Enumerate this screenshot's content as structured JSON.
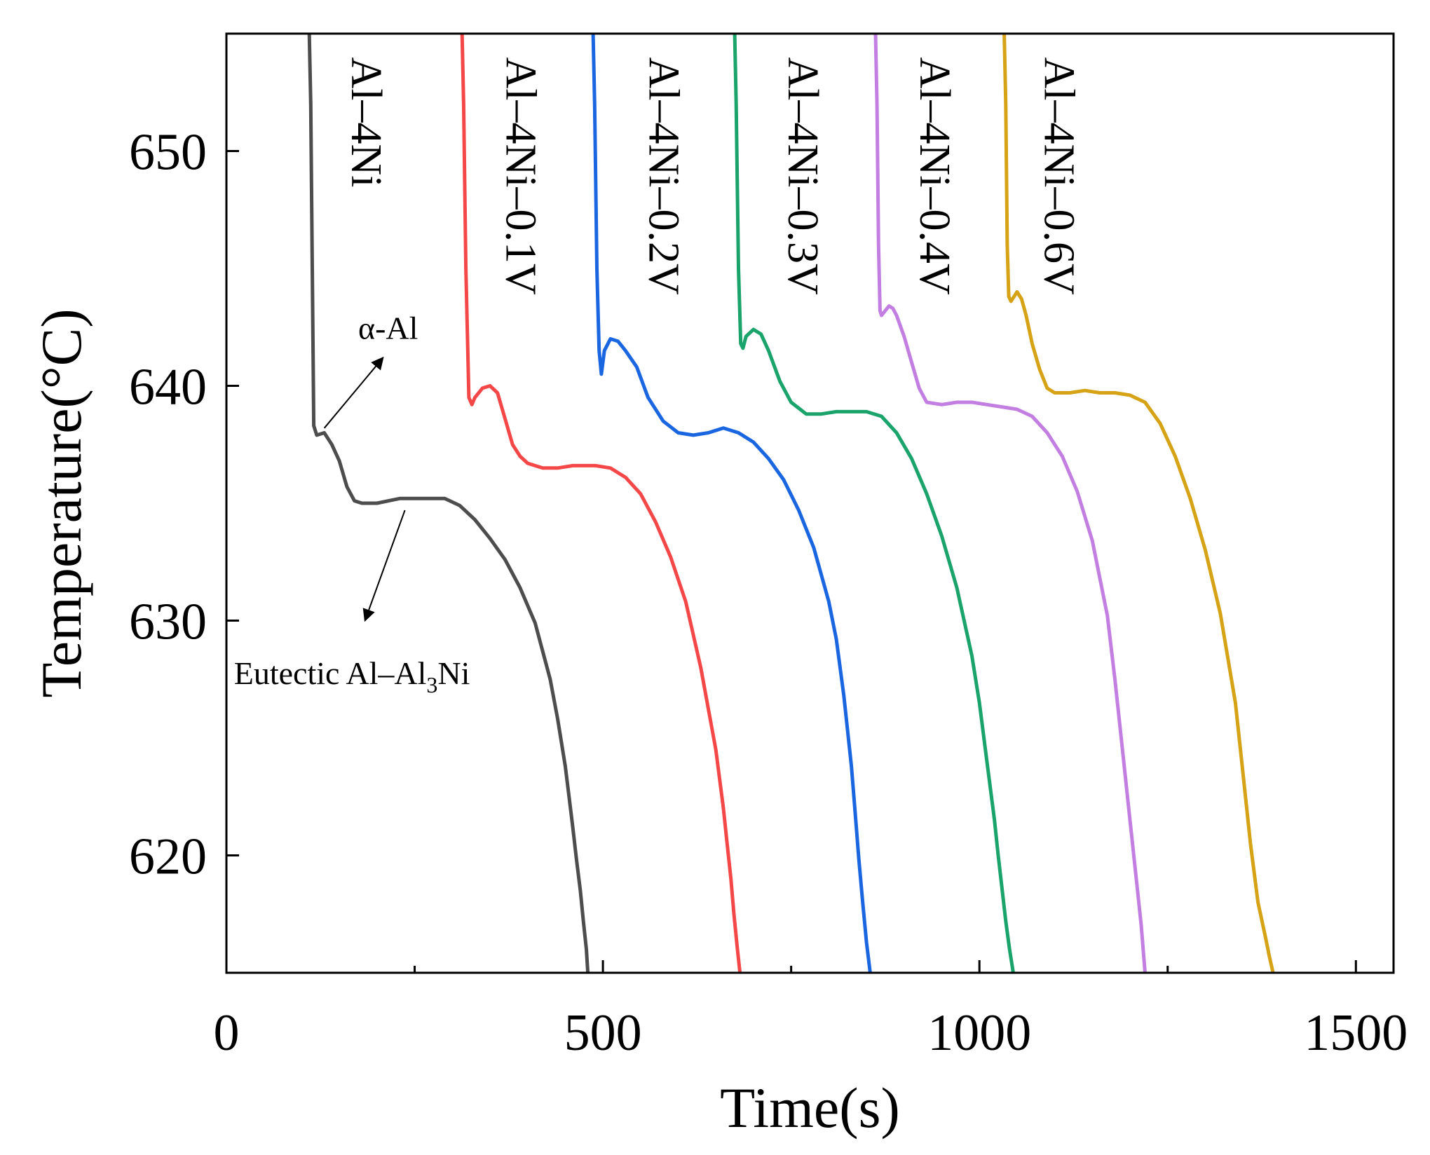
{
  "chart_data": {
    "type": "line",
    "title": "",
    "xlabel": "Time(s)",
    "ylabel": "Temperature(°C)",
    "xlim": [
      0,
      1550
    ],
    "ylim": [
      615,
      655
    ],
    "xticks": [
      0,
      500,
      1000,
      1500
    ],
    "xtick_labels": [
      "0",
      "500",
      "1000",
      "1500"
    ],
    "xminor": [
      250,
      750,
      1250
    ],
    "yticks": [
      620,
      630,
      640,
      650
    ],
    "ytick_labels": [
      "620",
      "630",
      "640",
      "650"
    ],
    "grid": false,
    "legend": "none",
    "series": [
      {
        "name": "Al–4Ni",
        "color": "#4d4d4d",
        "x": [
          110,
          112,
          114,
          116,
          120,
          130,
          140,
          150,
          160,
          170,
          180,
          200,
          230,
          260,
          290,
          310,
          330,
          350,
          370,
          390,
          410,
          430,
          440,
          450,
          455,
          460,
          465,
          470,
          474,
          478,
          480
        ],
        "y": [
          655,
          652,
          645,
          638.3,
          637.9,
          638.0,
          637.5,
          636.8,
          635.7,
          635.1,
          635.0,
          635.0,
          635.2,
          635.2,
          635.2,
          634.9,
          634.3,
          633.5,
          632.6,
          631.4,
          629.9,
          627.5,
          625.8,
          623.8,
          622.5,
          621.2,
          619.8,
          618.5,
          617.2,
          616.0,
          615
        ]
      },
      {
        "name": "Al–4Ni–0.1V",
        "color": "#f44848",
        "x": [
          313,
          315,
          318,
          322,
          326,
          330,
          340,
          350,
          360,
          370,
          380,
          390,
          400,
          420,
          440,
          460,
          490,
          510,
          530,
          550,
          570,
          590,
          610,
          630,
          650,
          660,
          665,
          670,
          674,
          678,
          682
        ],
        "y": [
          655,
          652,
          645,
          639.5,
          639.2,
          639.5,
          639.9,
          640.0,
          639.7,
          638.6,
          637.5,
          637.0,
          636.7,
          636.5,
          636.5,
          636.6,
          636.6,
          636.5,
          636.1,
          635.4,
          634.2,
          632.7,
          630.8,
          628.0,
          624.5,
          622.0,
          620.5,
          619.0,
          617.5,
          616.2,
          615
        ]
      },
      {
        "name": "Al–4Ni–0.2V",
        "color": "#1a66e0",
        "x": [
          487,
          489,
          492,
          495,
          498,
          502,
          510,
          520,
          530,
          545,
          560,
          580,
          600,
          620,
          640,
          660,
          680,
          700,
          720,
          740,
          760,
          780,
          800,
          810,
          820,
          830,
          835,
          840,
          845,
          850,
          855
        ],
        "y": [
          655,
          652,
          645,
          641.5,
          640.5,
          641.5,
          642.0,
          641.9,
          641.5,
          640.8,
          639.5,
          638.5,
          638.0,
          637.9,
          638.0,
          638.2,
          638.0,
          637.6,
          636.9,
          636.0,
          634.7,
          633.1,
          630.8,
          629.2,
          626.8,
          623.8,
          621.8,
          619.8,
          618.0,
          616.3,
          615
        ]
      },
      {
        "name": "Al–4Ni–0.3V",
        "color": "#1aa36a",
        "x": [
          675,
          677,
          680,
          683,
          686,
          690,
          700,
          710,
          720,
          735,
          750,
          770,
          790,
          810,
          830,
          850,
          870,
          890,
          910,
          930,
          950,
          970,
          990,
          1000,
          1010,
          1020,
          1025,
          1030,
          1035,
          1040,
          1045
        ],
        "y": [
          655,
          652,
          645,
          641.8,
          641.6,
          642.1,
          642.4,
          642.2,
          641.5,
          640.2,
          639.3,
          638.8,
          638.8,
          638.9,
          638.9,
          638.9,
          638.7,
          638.0,
          636.9,
          635.4,
          633.6,
          631.4,
          628.5,
          626.5,
          624.0,
          621.5,
          620.0,
          618.6,
          617.2,
          616.0,
          615
        ]
      },
      {
        "name": "Al–4Ni–0.4V",
        "color": "#c27ee0",
        "x": [
          862,
          864,
          866,
          868,
          870,
          875,
          880,
          885,
          890,
          900,
          910,
          920,
          930,
          950,
          970,
          990,
          1010,
          1030,
          1050,
          1070,
          1090,
          1110,
          1130,
          1150,
          1170,
          1180,
          1190,
          1200,
          1210,
          1215,
          1220
        ],
        "y": [
          655,
          652,
          646,
          643.2,
          643.0,
          643.2,
          643.4,
          643.3,
          643.0,
          642.1,
          641.0,
          639.9,
          639.3,
          639.2,
          639.3,
          639.3,
          639.2,
          639.1,
          639.0,
          638.7,
          638.0,
          637.0,
          635.5,
          633.4,
          630.2,
          627.5,
          624.5,
          621.5,
          618.5,
          617.0,
          615
        ]
      },
      {
        "name": "Al–4Ni–0.6V",
        "color": "#d6a216",
        "x": [
          1033,
          1035,
          1037,
          1039,
          1042,
          1046,
          1050,
          1056,
          1062,
          1070,
          1080,
          1090,
          1100,
          1120,
          1140,
          1160,
          1180,
          1200,
          1220,
          1240,
          1260,
          1280,
          1300,
          1320,
          1340,
          1350,
          1360,
          1370,
          1380,
          1385,
          1390
        ],
        "y": [
          655,
          652,
          646,
          643.8,
          643.6,
          643.8,
          644.0,
          643.7,
          643.0,
          641.8,
          640.7,
          639.9,
          639.7,
          639.7,
          639.8,
          639.7,
          639.7,
          639.6,
          639.3,
          638.4,
          637.0,
          635.2,
          633.0,
          630.3,
          626.5,
          623.5,
          620.5,
          618.0,
          616.5,
          615.7,
          615
        ]
      }
    ],
    "curve_labels": [
      {
        "text": "Al–4Ni",
        "x": 180,
        "y": 654
      },
      {
        "text": "Al–4Ni–0.1V",
        "x": 385,
        "y": 654
      },
      {
        "text": "Al–4Ni–0.2V",
        "x": 575,
        "y": 654
      },
      {
        "text": "Al–4Ni–0.3V",
        "x": 760,
        "y": 654
      },
      {
        "text": "Al–4Ni–0.4V",
        "x": 935,
        "y": 654
      },
      {
        "text": "Al–4Ni–0.6V",
        "x": 1100,
        "y": 654
      }
    ],
    "annotations": [
      {
        "name": "alpha-al",
        "text": "α-Al",
        "text_x": 175,
        "text_y": 642.0,
        "arrow_from_x": 130,
        "arrow_from_y": 638.2,
        "arrow_to_x": 208,
        "arrow_to_y": 641.2
      },
      {
        "name": "eutectic",
        "text_main": "Eutectic Al–Al",
        "subscript": "3",
        "text_end": "Ni",
        "text_x": 10,
        "text_y": 627.3,
        "arrow_from_x": 237,
        "arrow_from_y": 634.7,
        "arrow_to_x": 184,
        "arrow_to_y": 630.0
      }
    ]
  }
}
